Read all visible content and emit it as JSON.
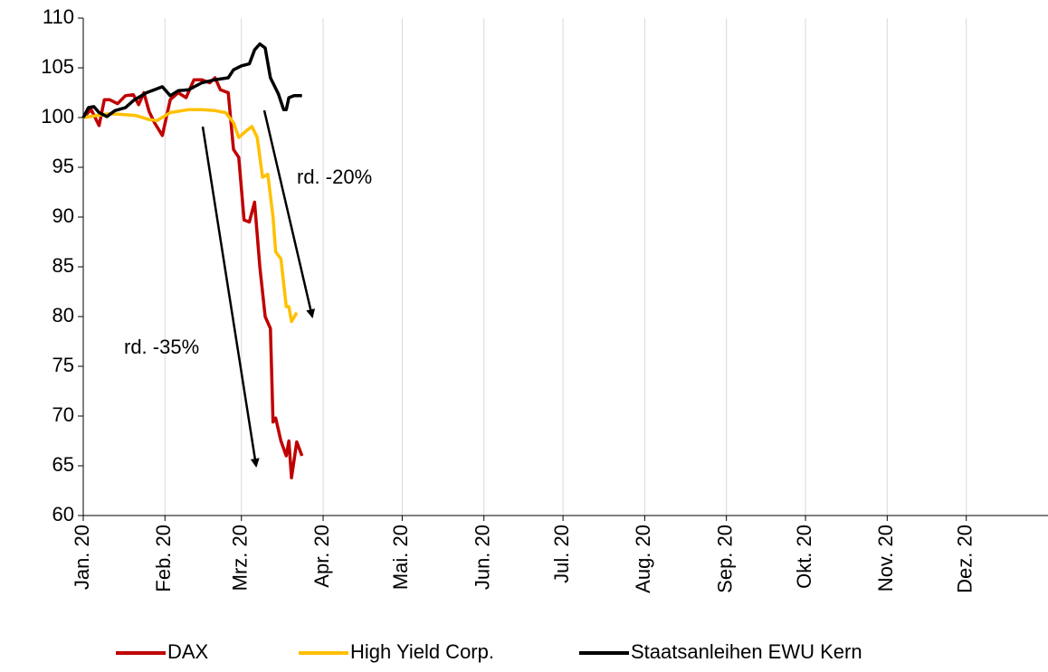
{
  "chart_data": {
    "type": "line",
    "xlim": [
      0,
      366
    ],
    "xticks": [
      {
        "value": 0,
        "label": "Jan. 20"
      },
      {
        "value": 31,
        "label": "Feb. 20"
      },
      {
        "value": 60,
        "label": "Mrz. 20"
      },
      {
        "value": 91,
        "label": "Apr. 20"
      },
      {
        "value": 121,
        "label": "Mai. 20"
      },
      {
        "value": 152,
        "label": "Jun. 20"
      },
      {
        "value": 182,
        "label": "Jul. 20"
      },
      {
        "value": 213,
        "label": "Aug. 20"
      },
      {
        "value": 244,
        "label": "Sep. 20"
      },
      {
        "value": 274,
        "label": "Okt. 20"
      },
      {
        "value": 305,
        "label": "Nov. 20"
      },
      {
        "value": 335,
        "label": "Dez. 20"
      }
    ],
    "ylim": [
      60,
      110
    ],
    "yticks": [
      60,
      65,
      70,
      75,
      80,
      85,
      90,
      95,
      100,
      105,
      110
    ],
    "xgrid": true,
    "legend": "bottom",
    "annotations": [
      "rd. -20%",
      "rd. -35%"
    ],
    "series": [
      {
        "name": "DAX",
        "color": "#c00000",
        "x": [
          0,
          3,
          6,
          8,
          10,
          13,
          16,
          19,
          21,
          23,
          25,
          27,
          30,
          33,
          36,
          39,
          42,
          45,
          48,
          50,
          52,
          55,
          57,
          59,
          61,
          63,
          65,
          67,
          69,
          71,
          72,
          73,
          75,
          77,
          78,
          79,
          81,
          83
        ],
        "values": [
          100,
          100.8,
          99.2,
          101.8,
          101.8,
          101.4,
          102.2,
          102.3,
          101.3,
          102.5,
          100.6,
          99.5,
          98.2,
          101.8,
          102.5,
          102,
          103.8,
          103.8,
          103.5,
          104,
          102.8,
          102.5,
          96.8,
          96,
          89.7,
          89.5,
          91.5,
          85,
          80,
          78.8,
          69.4,
          69.8,
          67.5,
          66,
          67.5,
          63.8,
          67.4,
          66
        ]
      },
      {
        "name": "High Yield Corp.",
        "color": "#ffc000",
        "x": [
          0,
          10,
          20,
          25,
          28,
          33,
          40,
          45,
          50,
          54,
          57,
          59,
          62,
          64,
          66,
          68,
          70,
          72,
          73,
          75,
          77,
          78,
          79,
          81
        ],
        "values": [
          100,
          100.4,
          100.2,
          99.8,
          99.7,
          100.5,
          100.8,
          100.8,
          100.7,
          100.5,
          99.5,
          98,
          98.7,
          99.1,
          98,
          94,
          94.3,
          90,
          86.5,
          85.8,
          81,
          81,
          79.5,
          80.4
        ]
      },
      {
        "name": "Staatsanleihen EWU Kern",
        "color": "#000000",
        "x": [
          0,
          2,
          4,
          6,
          9,
          12,
          16,
          19,
          24,
          27,
          30,
          33,
          36,
          40,
          45,
          50,
          55,
          57,
          60,
          63,
          65,
          67,
          69,
          71,
          74,
          76,
          77,
          78,
          80,
          83
        ],
        "values": [
          100,
          101,
          101.1,
          100.5,
          100.1,
          100.7,
          101,
          101.7,
          102.5,
          102.8,
          103.1,
          102.2,
          102.7,
          102.8,
          103.5,
          103.8,
          104,
          104.8,
          105.2,
          105.4,
          106.8,
          107.4,
          107,
          104,
          102.4,
          100.8,
          100.8,
          102,
          102.2,
          102.2
        ]
      }
    ]
  }
}
